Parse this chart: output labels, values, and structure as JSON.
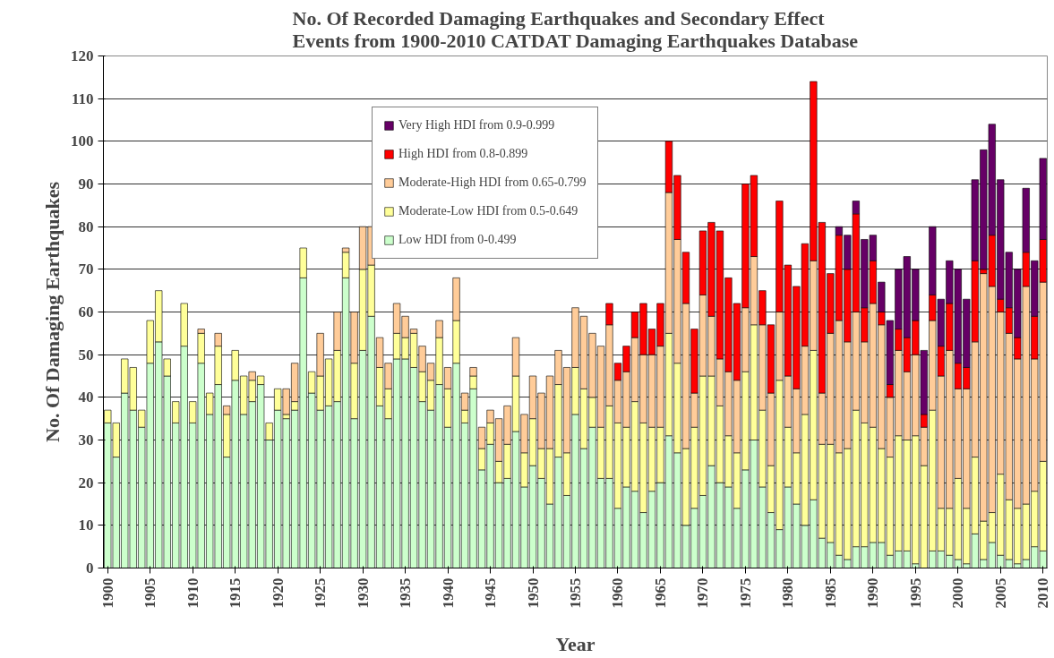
{
  "chart_data": {
    "type": "bar",
    "stacked": true,
    "title": "No. Of Recorded Damaging Earthquakes and Secondary Effect\nEvents from 1900-2010 CATDAT Damaging Earthquakes Database",
    "xlabel": "Year",
    "ylabel": "No. Of Damaging Earthquakes",
    "x": [
      1900,
      1901,
      1902,
      1903,
      1904,
      1905,
      1906,
      1907,
      1908,
      1909,
      1910,
      1911,
      1912,
      1913,
      1914,
      1915,
      1916,
      1917,
      1918,
      1919,
      1920,
      1921,
      1922,
      1923,
      1924,
      1925,
      1926,
      1927,
      1928,
      1929,
      1930,
      1931,
      1932,
      1933,
      1934,
      1935,
      1936,
      1937,
      1938,
      1939,
      1940,
      1941,
      1942,
      1943,
      1944,
      1945,
      1946,
      1947,
      1948,
      1949,
      1950,
      1951,
      1952,
      1953,
      1954,
      1955,
      1956,
      1957,
      1958,
      1959,
      1960,
      1961,
      1962,
      1963,
      1964,
      1965,
      1966,
      1967,
      1968,
      1969,
      1970,
      1971,
      1972,
      1973,
      1974,
      1975,
      1976,
      1977,
      1978,
      1979,
      1980,
      1981,
      1982,
      1983,
      1984,
      1985,
      1986,
      1987,
      1988,
      1989,
      1990,
      1991,
      1992,
      1993,
      1994,
      1995,
      1996,
      1997,
      1998,
      1999,
      2000,
      2001,
      2002,
      2003,
      2004,
      2005,
      2006,
      2007,
      2008,
      2009,
      2010
    ],
    "xlim": [
      1899.5,
      2010.5
    ],
    "xticks": [
      1900,
      1905,
      1910,
      1915,
      1920,
      1925,
      1930,
      1935,
      1940,
      1945,
      1950,
      1955,
      1960,
      1965,
      1970,
      1975,
      1980,
      1985,
      1990,
      1995,
      2000,
      2005,
      2010
    ],
    "ylim": [
      0,
      120
    ],
    "yticks": [
      0,
      10,
      20,
      30,
      40,
      50,
      60,
      70,
      80,
      90,
      100,
      110,
      120
    ],
    "grid": "y",
    "legend": "top",
    "series": [
      {
        "name": "Low HDI from 0-0.499",
        "color": "#ccffcc",
        "values": [
          34,
          26,
          41,
          37,
          33,
          48,
          53,
          45,
          34,
          52,
          34,
          48,
          36,
          43,
          26,
          44,
          36,
          39,
          43,
          30,
          37,
          35,
          37,
          68,
          41,
          37,
          38,
          39,
          68,
          35,
          51,
          59,
          38,
          35,
          49,
          49,
          47,
          39,
          37,
          43,
          33,
          48,
          34,
          42,
          23,
          29,
          20,
          21,
          32,
          19,
          24,
          21,
          15,
          26,
          17,
          36,
          28,
          33,
          21,
          21,
          14,
          19,
          18,
          13,
          18,
          20,
          31,
          27,
          10,
          14,
          17,
          24,
          20,
          19,
          14,
          23,
          30,
          19,
          13,
          9,
          19,
          15,
          10,
          16,
          7,
          6,
          3,
          2,
          5,
          5,
          6,
          6,
          3,
          4,
          4,
          1,
          0,
          4,
          4,
          3,
          2,
          1,
          8,
          2,
          6,
          3,
          2,
          1,
          2,
          5,
          4
        ]
      },
      {
        "name": "Moderate-Low HDI from 0.5-0.649",
        "color": "#ffff99",
        "values": [
          3,
          8,
          8,
          10,
          4,
          10,
          12,
          4,
          5,
          10,
          5,
          7,
          5,
          9,
          10,
          7,
          9,
          5,
          2,
          4,
          5,
          1,
          2,
          7,
          5,
          8,
          11,
          12,
          6,
          13,
          19,
          12,
          9,
          7,
          6,
          5,
          8,
          7,
          7,
          11,
          9,
          10,
          3,
          3,
          5,
          5,
          5,
          8,
          13,
          8,
          11,
          7,
          13,
          17,
          10,
          11,
          14,
          7,
          12,
          17,
          20,
          14,
          21,
          21,
          15,
          13,
          24,
          21,
          18,
          19,
          28,
          21,
          18,
          12,
          13,
          23,
          27,
          18,
          11,
          35,
          14,
          12,
          26,
          35,
          22,
          23,
          24,
          26,
          32,
          29,
          27,
          22,
          23,
          27,
          26,
          30,
          24,
          33,
          10,
          11,
          19,
          13,
          18,
          9,
          7,
          19,
          14,
          13,
          13,
          13,
          21
        ]
      },
      {
        "name": "Moderate-High HDI from 0.65-0.799",
        "color": "#ffcc99",
        "values": [
          0,
          0,
          0,
          0,
          0,
          0,
          0,
          0,
          0,
          0,
          0,
          1,
          0,
          3,
          2,
          0,
          0,
          2,
          0,
          0,
          0,
          6,
          9,
          0,
          0,
          10,
          0,
          9,
          1,
          12,
          10,
          9,
          7,
          6,
          7,
          5,
          1,
          6,
          4,
          4,
          5,
          10,
          4,
          2,
          5,
          3,
          10,
          9,
          9,
          9,
          10,
          13,
          17,
          8,
          20,
          14,
          17,
          15,
          19,
          19,
          10,
          13,
          15,
          16,
          17,
          19,
          33,
          29,
          34,
          8,
          19,
          14,
          11,
          15,
          17,
          15,
          16,
          20,
          17,
          16,
          12,
          15,
          16,
          21,
          12,
          26,
          31,
          25,
          23,
          19,
          29,
          29,
          14,
          20,
          16,
          19,
          9,
          21,
          31,
          37,
          21,
          28,
          27,
          58,
          53,
          38,
          39,
          35,
          51,
          31,
          42
        ]
      },
      {
        "name": "High HDI from 0.8-0.899",
        "color": "#ff0000",
        "values": [
          0,
          0,
          0,
          0,
          0,
          0,
          0,
          0,
          0,
          0,
          0,
          0,
          0,
          0,
          0,
          0,
          0,
          0,
          0,
          0,
          0,
          0,
          0,
          0,
          0,
          0,
          0,
          0,
          0,
          0,
          0,
          0,
          0,
          0,
          0,
          0,
          0,
          0,
          0,
          0,
          0,
          0,
          0,
          0,
          0,
          0,
          0,
          0,
          0,
          0,
          0,
          0,
          0,
          0,
          0,
          0,
          0,
          0,
          0,
          5,
          4,
          6,
          6,
          12,
          6,
          10,
          12,
          15,
          12,
          15,
          15,
          22,
          30,
          22,
          18,
          29,
          19,
          8,
          16,
          26,
          26,
          24,
          24,
          42,
          40,
          14,
          20,
          17,
          23,
          8,
          10,
          3,
          3,
          5,
          8,
          8,
          3,
          6,
          7,
          11,
          6,
          5,
          19,
          1,
          12,
          3,
          6,
          5,
          8,
          10,
          10
        ]
      },
      {
        "name": "Very High HDI from 0.9-0.999",
        "color": "#660066",
        "values": [
          0,
          0,
          0,
          0,
          0,
          0,
          0,
          0,
          0,
          0,
          0,
          0,
          0,
          0,
          0,
          0,
          0,
          0,
          0,
          0,
          0,
          0,
          0,
          0,
          0,
          0,
          0,
          0,
          0,
          0,
          0,
          0,
          0,
          0,
          0,
          0,
          0,
          0,
          0,
          0,
          0,
          0,
          0,
          0,
          0,
          0,
          0,
          0,
          0,
          0,
          0,
          0,
          0,
          0,
          0,
          0,
          0,
          0,
          0,
          0,
          0,
          0,
          0,
          0,
          0,
          0,
          0,
          0,
          0,
          0,
          0,
          0,
          0,
          0,
          0,
          0,
          0,
          0,
          0,
          0,
          0,
          0,
          0,
          0,
          0,
          0,
          2,
          8,
          3,
          16,
          6,
          7,
          15,
          14,
          19,
          12,
          15,
          16,
          11,
          10,
          22,
          16,
          19,
          28,
          26,
          28,
          13,
          16,
          15,
          13,
          19
        ]
      }
    ]
  }
}
